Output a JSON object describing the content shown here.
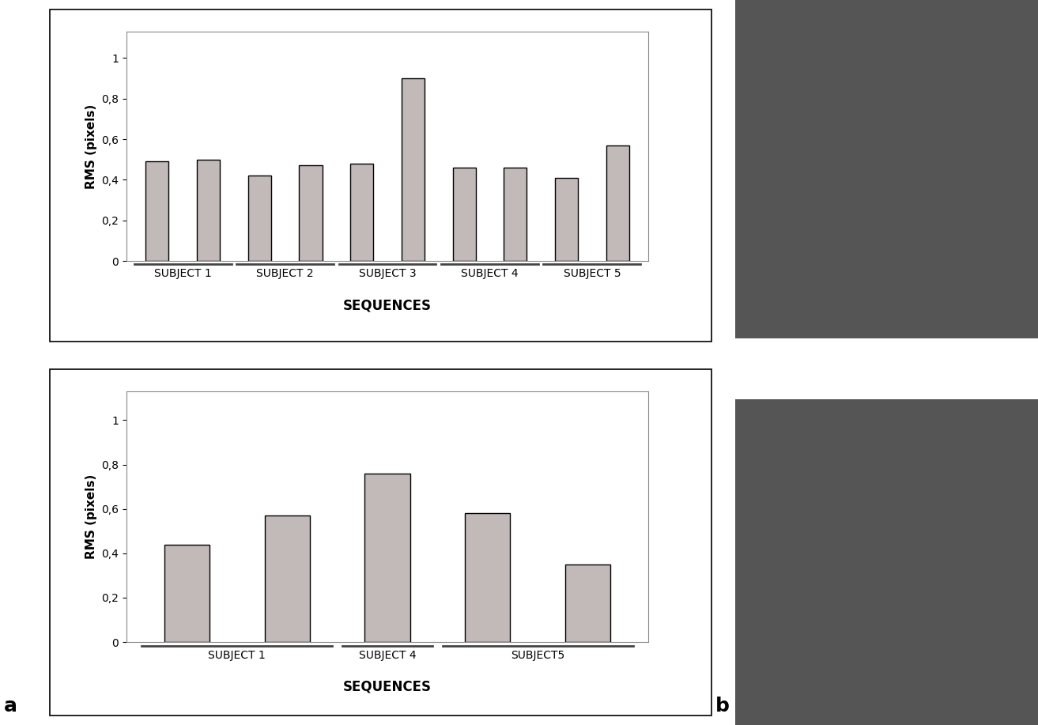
{
  "panel_labels": [
    "a",
    "b"
  ],
  "chart_data": [
    {
      "type": "bar",
      "y_label": "RMS (pixels)",
      "x_label": "SEQUENCES",
      "categories": [
        null,
        null,
        null,
        null,
        null,
        null,
        null,
        null,
        null,
        null
      ],
      "values": [
        0.49,
        0.5,
        0.42,
        0.47,
        0.48,
        0.9,
        0.46,
        0.46,
        0.41,
        0.57
      ],
      "groups": [
        {
          "name": "SUBJECT 1",
          "count": 2
        },
        {
          "name": "SUBJECT 2",
          "count": 2
        },
        {
          "name": "SUBJECT 3",
          "count": 2
        },
        {
          "name": "SUBJECT 4",
          "count": 2
        },
        {
          "name": "SUBJECT 5",
          "count": 2
        }
      ],
      "color": "#c2b9b9",
      "ylim": [
        0,
        1.13
      ],
      "yticks": [
        0,
        {
          "value": 0.2,
          "label": "0,2"
        },
        {
          "value": 0.4,
          "label": "0,4"
        },
        {
          "value": 0.6,
          "label": "0,6"
        },
        {
          "value": 0.8,
          "label": "0,8"
        },
        1
      ]
    },
    {
      "type": "bar",
      "y_label": "RMS (pixels)",
      "x_label": "SEQUENCES",
      "categories": [
        null,
        null,
        null,
        null,
        null
      ],
      "values": [
        0.44,
        0.57,
        0.76,
        0.58,
        0.35
      ],
      "groups": [
        {
          "name": "SUBJECT 1",
          "count": 2
        },
        {
          "name": "SUBJECT 4",
          "count": 1
        },
        {
          "name": "SUBJECT5",
          "count": 2
        }
      ],
      "color": "#c2b9b9",
      "ylim": [
        0,
        1.13
      ],
      "yticks": [
        0,
        {
          "value": 0.2,
          "label": "0,2"
        },
        {
          "value": 0.4,
          "label": "0,4"
        },
        {
          "value": 0.6,
          "label": "0,6"
        },
        {
          "value": 0.8,
          "label": "0,8"
        },
        1
      ]
    }
  ]
}
